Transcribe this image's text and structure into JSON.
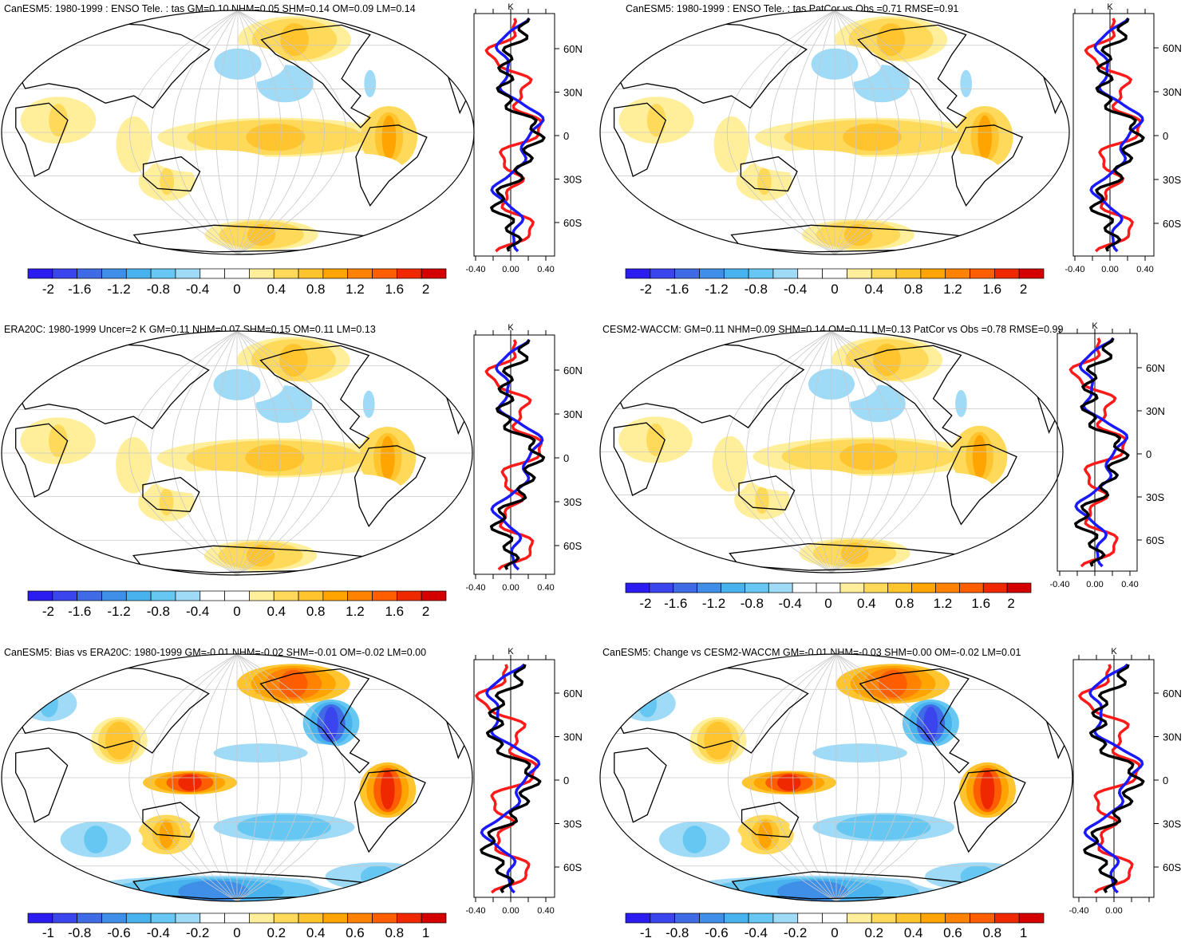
{
  "colors": {
    "scale": [
      "#2b1cf0",
      "#3a45ee",
      "#3f6be6",
      "#3f8fe8",
      "#48b2ef",
      "#66c8f2",
      "#9fdaf6",
      "#ffffff",
      "#ffffff",
      "#ffef9a",
      "#ffd95a",
      "#ffc42e",
      "#ffa400",
      "#ff8200",
      "#ff5e00",
      "#f02800",
      "#d40000"
    ],
    "line_blue": "#1a1aff",
    "line_red": "#ff1a1a",
    "line_black": "#000000"
  },
  "panels": [
    {
      "title": "CanESM5: 1980-1999 : ENSO Tele. : tas GM=0.10 NHM=0.05 SHM=0.14 OM=0.09 LM=0.14",
      "colorbar_labels": [
        "-2",
        "-1.6",
        "-1.2",
        "-0.8",
        "-0.4",
        "0",
        "0.4",
        "0.8",
        "1.2",
        "1.6",
        "2"
      ],
      "profile": {
        "unit": "K",
        "xticks": [
          "-0.40",
          "0.00",
          "0.40"
        ],
        "lat_labels": [
          "60N",
          "30N",
          "0",
          "30S",
          "60S"
        ]
      }
    },
    {
      "title": "CanESM5: 1980-1999 : ENSO Tele. : tas PatCor vs Obs =0.71 RMSE=0.91",
      "colorbar_labels": [
        "-2",
        "-1.6",
        "-1.2",
        "-0.8",
        "-0.4",
        "0",
        "0.4",
        "0.8",
        "1.2",
        "1.6",
        "2"
      ],
      "profile": {
        "unit": "K",
        "xticks": [
          "-0.40",
          "0.00",
          "0.40"
        ],
        "lat_labels": [
          "60N",
          "30N",
          "0",
          "30S",
          "60S"
        ]
      }
    },
    {
      "title": "ERA20C: 1980-1999 Uncer=2 K GM=0.11 NHM=0.07 SHM=0.15 OM=0.11 LM=0.13",
      "colorbar_labels": [
        "-2",
        "-1.6",
        "-1.2",
        "-0.8",
        "-0.4",
        "0",
        "0.4",
        "0.8",
        "1.2",
        "1.6",
        "2"
      ],
      "profile": {
        "unit": "K",
        "xticks": [
          "-0.40",
          "0.00",
          "0.40"
        ],
        "lat_labels": [
          "60N",
          "30N",
          "0",
          "30S",
          "60S"
        ]
      }
    },
    {
      "title": "CESM2-WACCM: GM=0.11 NHM=0.09 SHM=0.14 OM=0.11 LM=0.13 PatCor vs Obs =0.78 RMSE=0.99",
      "colorbar_labels": [
        "-2",
        "-1.6",
        "-1.2",
        "-0.8",
        "-0.4",
        "0",
        "0.4",
        "0.8",
        "1.2",
        "1.6",
        "2"
      ],
      "profile": {
        "unit": "K",
        "xticks": [
          "-0.40",
          "0.00",
          "0.40"
        ],
        "lat_labels": [
          "60N",
          "30N",
          "0",
          "30S",
          "60S"
        ]
      }
    },
    {
      "title": "CanESM5: Bias vs ERA20C: 1980-1999 GM=-0.01 NHM=-0.02 SHM=-0.01 OM=-0.02 LM=0.00",
      "colorbar_labels": [
        "-1",
        "-0.8",
        "-0.6",
        "-0.4",
        "-0.2",
        "0",
        "0.2",
        "0.4",
        "0.6",
        "0.8",
        "1"
      ],
      "profile": {
        "unit": "K",
        "xticks": [
          "-0.40",
          "0.00",
          "0.40"
        ],
        "lat_labels": [
          "60N",
          "30N",
          "0",
          "30S",
          "60S"
        ]
      }
    },
    {
      "title": "CanESM5: Change vs CESM2-WACCM GM=-0.01 NHM=-0.03 SHM=0.00 OM=-0.02 LM=0.01",
      "colorbar_labels": [
        "-1",
        "-0.8",
        "-0.6",
        "-0.4",
        "-0.2",
        "0",
        "0.2",
        "0.4",
        "0.6",
        "0.8",
        "1"
      ],
      "profile": {
        "unit": "K",
        "xticks": [
          "-0.40",
          "0.00"
        ],
        "lat_labels": [
          "60N",
          "30N",
          "0",
          "30S",
          "60S"
        ]
      }
    }
  ]
}
